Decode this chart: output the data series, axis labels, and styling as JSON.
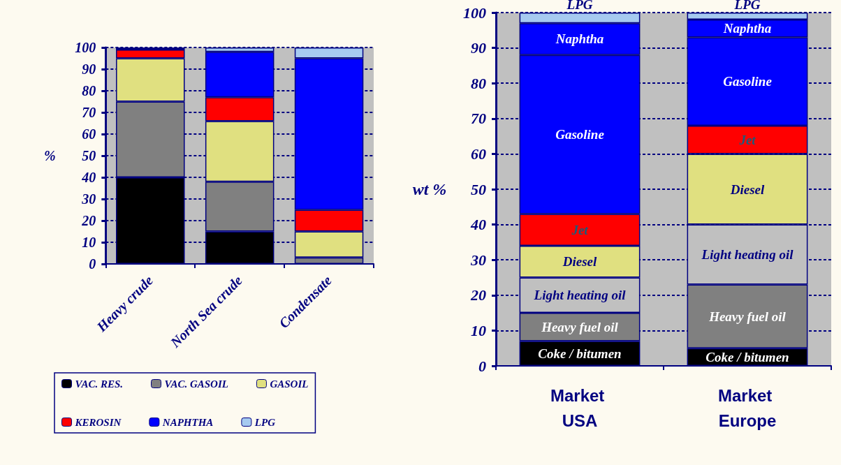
{
  "chart_data": [
    {
      "type": "bar",
      "stacked": true,
      "categories": [
        "Heavy crude",
        "North Sea crude",
        "Condensate"
      ],
      "ylabel": "%",
      "ylim": [
        0,
        100
      ],
      "yticks": [
        0,
        10,
        20,
        30,
        40,
        50,
        60,
        70,
        80,
        90,
        100
      ],
      "grid": "y",
      "legend": "bottom",
      "series": [
        {
          "name": "VAC. RES.",
          "color": "#000000",
          "values": [
            40,
            15,
            0
          ]
        },
        {
          "name": "VAC. GASOIL",
          "color": "#808080",
          "values": [
            35,
            23,
            3
          ]
        },
        {
          "name": "GASOIL",
          "color": "#e0e080",
          "values": [
            20,
            28,
            12
          ]
        },
        {
          "name": "KEROSIN",
          "color": "#ff0000",
          "values": [
            4,
            11,
            10
          ]
        },
        {
          "name": "NAPHTHA",
          "color": "#0000ff",
          "values": [
            1,
            21,
            70
          ]
        },
        {
          "name": "LPG",
          "color": "#a6caf0",
          "values": [
            0,
            2,
            5
          ]
        }
      ]
    },
    {
      "type": "bar",
      "stacked": true,
      "categories": [
        "Market USA",
        "Market Europe"
      ],
      "ylabel": "wt %",
      "ylim": [
        0,
        100
      ],
      "yticks": [
        0,
        10,
        20,
        30,
        40,
        50,
        60,
        70,
        80,
        90,
        100
      ],
      "grid": "y",
      "legend": false,
      "series": [
        {
          "name": "Coke / bitumen",
          "color": "#000000",
          "values": [
            7,
            5
          ]
        },
        {
          "name": "Heavy fuel oil",
          "color": "#808080",
          "values": [
            8,
            18
          ]
        },
        {
          "name": "Light heating oil",
          "color": "#c0c0c0",
          "values": [
            10,
            17
          ]
        },
        {
          "name": "Diesel",
          "color": "#e0e080",
          "values": [
            9,
            20
          ]
        },
        {
          "name": "Jet",
          "color": "#ff0000",
          "values": [
            9,
            8
          ]
        },
        {
          "name": "Gasoline",
          "color": "#0000ff",
          "values": [
            45,
            25
          ]
        },
        {
          "name": "Naphtha",
          "color": "#0000ff",
          "values": [
            9,
            5
          ]
        },
        {
          "name": "LPG",
          "color": "#a6caf0",
          "values": [
            3,
            2
          ]
        }
      ]
    }
  ]
}
